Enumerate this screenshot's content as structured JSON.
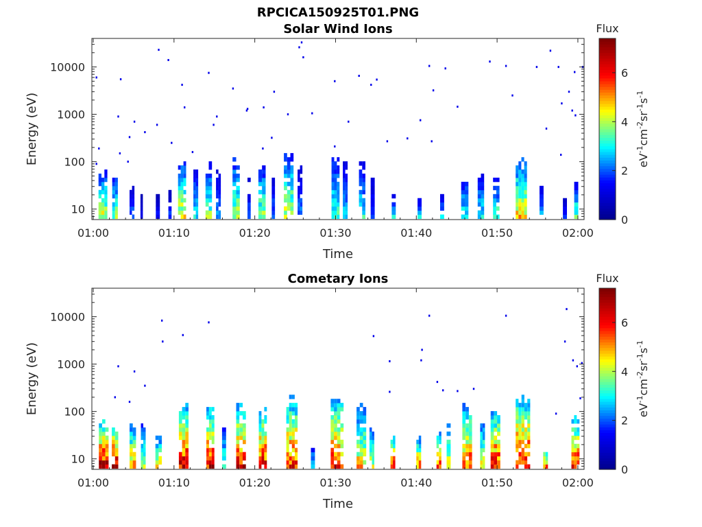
{
  "figure": {
    "filename": "RPCICA150925T01.PNG"
  },
  "colors": {
    "jet": [
      "#00008f",
      "#0000ff",
      "#00ffff",
      "#ffff00",
      "#ff0000",
      "#800000"
    ],
    "axis": "#262626"
  },
  "chart_data": [
    {
      "type": "heatmap",
      "title": "Solar Wind Ions",
      "xlabel": "Time",
      "ylabel": "Energy (eV)",
      "x_ticks": [
        "01:00",
        "01:10",
        "01:20",
        "01:30",
        "01:40",
        "01:50",
        "02:00"
      ],
      "xlim": [
        "01:00",
        "02:00"
      ],
      "y_ticks": [
        "10",
        "100",
        "1000",
        "10000"
      ],
      "y_scale": "log",
      "ylim": [
        6,
        40000
      ],
      "colorbar": {
        "label": "Flux",
        "unit": "eV-1cm-2sr-1s-1",
        "ticks": [
          "0",
          "2",
          "4",
          "6"
        ],
        "range": [
          0,
          7.4
        ]
      },
      "note_time_in_minutes_after_01:00": true,
      "bursts": [
        {
          "t": 1.2,
          "w": 1.1,
          "emax": 45,
          "flux": 4.2
        },
        {
          "t": 2.7,
          "w": 0.7,
          "emax": 45,
          "flux": 3.6
        },
        {
          "t": 4.8,
          "w": 0.6,
          "emax": 22,
          "flux": 2.2
        },
        {
          "t": 6.0,
          "w": 0.3,
          "emax": 16,
          "flux": 1.2
        },
        {
          "t": 8.0,
          "w": 0.5,
          "emax": 16,
          "flux": 1.5
        },
        {
          "t": 9.5,
          "w": 0.4,
          "emax": 16,
          "flux": 1.8
        },
        {
          "t": 11.0,
          "w": 1.0,
          "emax": 80,
          "flux": 4.3
        },
        {
          "t": 12.7,
          "w": 0.6,
          "emax": 60,
          "flux": 2.8
        },
        {
          "t": 14.3,
          "w": 0.8,
          "emax": 70,
          "flux": 3.6
        },
        {
          "t": 15.5,
          "w": 0.6,
          "emax": 50,
          "flux": 2.4
        },
        {
          "t": 17.7,
          "w": 0.9,
          "emax": 85,
          "flux": 4.0
        },
        {
          "t": 19.3,
          "w": 0.4,
          "emax": 30,
          "flux": 2.0
        },
        {
          "t": 20.9,
          "w": 0.9,
          "emax": 65,
          "flux": 3.8
        },
        {
          "t": 22.3,
          "w": 0.4,
          "emax": 35,
          "flux": 2.2
        },
        {
          "t": 24.2,
          "w": 1.2,
          "emax": 110,
          "flux": 4.1
        },
        {
          "t": 25.6,
          "w": 0.6,
          "emax": 60,
          "flux": 2.2
        },
        {
          "t": 30.0,
          "w": 1.0,
          "emax": 120,
          "flux": 3.3
        },
        {
          "t": 31.2,
          "w": 0.6,
          "emax": 80,
          "flux": 2.6
        },
        {
          "t": 33.3,
          "w": 0.8,
          "emax": 70,
          "flux": 3.0
        },
        {
          "t": 34.6,
          "w": 0.5,
          "emax": 45,
          "flux": 2.0
        },
        {
          "t": 37.2,
          "w": 0.5,
          "emax": 16,
          "flux": 2.7
        },
        {
          "t": 40.4,
          "w": 0.5,
          "emax": 16,
          "flux": 2.6
        },
        {
          "t": 43.2,
          "w": 0.5,
          "emax": 16,
          "flux": 2.7
        },
        {
          "t": 46.0,
          "w": 0.9,
          "emax": 35,
          "flux": 3.2
        },
        {
          "t": 48.0,
          "w": 0.8,
          "emax": 40,
          "flux": 3.0
        },
        {
          "t": 49.9,
          "w": 0.8,
          "emax": 30,
          "flux": 3.4
        },
        {
          "t": 53.0,
          "w": 1.4,
          "emax": 80,
          "flux": 4.6
        },
        {
          "t": 55.5,
          "w": 0.5,
          "emax": 30,
          "flux": 2.4
        },
        {
          "t": 58.4,
          "w": 0.5,
          "emax": 16,
          "flux": 1.8
        },
        {
          "t": 59.8,
          "w": 0.5,
          "emax": 30,
          "flux": 3.4
        }
      ],
      "points": [
        {
          "t": 0.3,
          "e": 6000
        },
        {
          "t": 3.3,
          "e": 5500
        },
        {
          "t": 8.0,
          "e": 23000
        },
        {
          "t": 9.2,
          "e": 14000
        },
        {
          "t": 10.9,
          "e": 4200
        },
        {
          "t": 14.2,
          "e": 7500
        },
        {
          "t": 17.2,
          "e": 3500
        },
        {
          "t": 21.0,
          "e": 1400
        },
        {
          "t": 22.3,
          "e": 3000
        },
        {
          "t": 25.7,
          "e": 33000
        },
        {
          "t": 25.9,
          "e": 16000
        },
        {
          "t": 25.4,
          "e": 26000
        },
        {
          "t": 27.0,
          "e": 1050
        },
        {
          "t": 29.8,
          "e": 5000
        },
        {
          "t": 32.8,
          "e": 6500
        },
        {
          "t": 34.3,
          "e": 4200
        },
        {
          "t": 35.0,
          "e": 5400
        },
        {
          "t": 41.5,
          "e": 10500
        },
        {
          "t": 42.0,
          "e": 3200
        },
        {
          "t": 43.5,
          "e": 9300
        },
        {
          "t": 51.0,
          "e": 10500
        },
        {
          "t": 49.0,
          "e": 13000
        },
        {
          "t": 54.8,
          "e": 10000
        },
        {
          "t": 57.5,
          "e": 10000
        },
        {
          "t": 56.5,
          "e": 22000
        },
        {
          "t": 58.8,
          "e": 3000
        },
        {
          "t": 59.5,
          "e": 7800
        },
        {
          "t": 60.5,
          "e": 10000
        },
        {
          "t": 3.0,
          "e": 900
        },
        {
          "t": 5.0,
          "e": 700
        },
        {
          "t": 6.3,
          "e": 420
        },
        {
          "t": 7.8,
          "e": 600
        },
        {
          "t": 11.2,
          "e": 1400
        },
        {
          "t": 15.2,
          "e": 900
        },
        {
          "t": 19.0,
          "e": 1300
        },
        {
          "t": 24.0,
          "e": 1000
        },
        {
          "t": 31.5,
          "e": 700
        },
        {
          "t": 40.4,
          "e": 750
        },
        {
          "t": 45.0,
          "e": 1450
        },
        {
          "t": 51.8,
          "e": 2500
        },
        {
          "t": 56.0,
          "e": 500
        },
        {
          "t": 57.9,
          "e": 1700
        },
        {
          "t": 59.2,
          "e": 1200
        },
        {
          "t": 59.6,
          "e": 950
        },
        {
          "t": 0.6,
          "e": 190
        },
        {
          "t": 3.2,
          "e": 150
        },
        {
          "t": 4.4,
          "e": 330
        },
        {
          "t": 9.6,
          "e": 250
        },
        {
          "t": 12.2,
          "e": 160
        },
        {
          "t": 20.9,
          "e": 190
        },
        {
          "t": 22.0,
          "e": 320
        },
        {
          "t": 29.8,
          "e": 210
        },
        {
          "t": 36.3,
          "e": 270
        },
        {
          "t": 38.8,
          "e": 310
        },
        {
          "t": 41.8,
          "e": 270
        },
        {
          "t": 57.8,
          "e": 140
        },
        {
          "t": 0.3,
          "e": 90
        },
        {
          "t": 4.2,
          "e": 100
        },
        {
          "t": 14.8,
          "e": 600
        },
        {
          "t": 18.9,
          "e": 1200
        }
      ]
    },
    {
      "type": "heatmap",
      "title": "Cometary Ions",
      "xlabel": "Time",
      "ylabel": "Energy (eV)",
      "x_ticks": [
        "01:00",
        "01:10",
        "01:20",
        "01:30",
        "01:40",
        "01:50",
        "02:00"
      ],
      "xlim": [
        "01:00",
        "02:00"
      ],
      "y_ticks": [
        "10",
        "100",
        "1000",
        "10000"
      ],
      "y_scale": "log",
      "ylim": [
        6,
        40000
      ],
      "colorbar": {
        "label": "Flux",
        "unit": "eV-1cm-2sr-1s-1",
        "ticks": [
          "0",
          "2",
          "4",
          "6"
        ],
        "range": [
          0,
          7.4
        ]
      },
      "bursts": [
        {
          "t": 1.3,
          "w": 1.2,
          "emax": 45,
          "flux": 6.6
        },
        {
          "t": 2.7,
          "w": 0.8,
          "emax": 45,
          "flux": 6.3
        },
        {
          "t": 4.9,
          "w": 0.8,
          "emax": 40,
          "flux": 5.2
        },
        {
          "t": 6.2,
          "w": 0.6,
          "emax": 45,
          "flux": 4.0
        },
        {
          "t": 8.1,
          "w": 0.8,
          "emax": 22,
          "flux": 4.7
        },
        {
          "t": 11.2,
          "w": 1.2,
          "emax": 100,
          "flux": 6.4
        },
        {
          "t": 14.5,
          "w": 1.0,
          "emax": 90,
          "flux": 6.2
        },
        {
          "t": 16.2,
          "w": 0.5,
          "emax": 40,
          "flux": 3.5
        },
        {
          "t": 18.3,
          "w": 1.2,
          "emax": 100,
          "flux": 6.1
        },
        {
          "t": 21.0,
          "w": 1.0,
          "emax": 90,
          "flux": 6.0
        },
        {
          "t": 24.6,
          "w": 1.4,
          "emax": 150,
          "flux": 5.8
        },
        {
          "t": 27.2,
          "w": 0.5,
          "emax": 16,
          "flux": 3.0
        },
        {
          "t": 30.2,
          "w": 1.6,
          "emax": 180,
          "flux": 5.6
        },
        {
          "t": 33.2,
          "w": 1.2,
          "emax": 100,
          "flux": 4.6
        },
        {
          "t": 34.5,
          "w": 0.6,
          "emax": 45,
          "flux": 4.0
        },
        {
          "t": 37.1,
          "w": 0.6,
          "emax": 25,
          "flux": 5.8
        },
        {
          "t": 40.3,
          "w": 0.6,
          "emax": 22,
          "flux": 5.3
        },
        {
          "t": 42.8,
          "w": 0.6,
          "emax": 28,
          "flux": 5.8
        },
        {
          "t": 44.0,
          "w": 0.5,
          "emax": 40,
          "flux": 4.8
        },
        {
          "t": 46.3,
          "w": 1.2,
          "emax": 110,
          "flux": 5.5
        },
        {
          "t": 48.2,
          "w": 0.6,
          "emax": 60,
          "flux": 4.2
        },
        {
          "t": 49.8,
          "w": 1.2,
          "emax": 80,
          "flux": 6.0
        },
        {
          "t": 53.2,
          "w": 1.8,
          "emax": 150,
          "flux": 6.3
        },
        {
          "t": 56.0,
          "w": 0.6,
          "emax": 16,
          "flux": 5.0
        },
        {
          "t": 59.7,
          "w": 1.0,
          "emax": 60,
          "flux": 6.0
        }
      ],
      "points": [
        {
          "t": 3.0,
          "e": 900
        },
        {
          "t": 5.0,
          "e": 700
        },
        {
          "t": 6.3,
          "e": 350
        },
        {
          "t": 8.4,
          "e": 8300
        },
        {
          "t": 8.5,
          "e": 3000
        },
        {
          "t": 11.0,
          "e": 4100
        },
        {
          "t": 14.2,
          "e": 7600
        },
        {
          "t": 34.6,
          "e": 3900
        },
        {
          "t": 36.6,
          "e": 1150
        },
        {
          "t": 40.5,
          "e": 1200
        },
        {
          "t": 40.6,
          "e": 2000
        },
        {
          "t": 41.5,
          "e": 10500
        },
        {
          "t": 51.0,
          "e": 10500
        },
        {
          "t": 58.5,
          "e": 14500
        },
        {
          "t": 58.3,
          "e": 3000
        },
        {
          "t": 59.3,
          "e": 1200
        },
        {
          "t": 59.8,
          "e": 900
        },
        {
          "t": 60.4,
          "e": 1050
        },
        {
          "t": 2.6,
          "e": 200
        },
        {
          "t": 4.4,
          "e": 160
        },
        {
          "t": 36.6,
          "e": 260
        },
        {
          "t": 42.5,
          "e": 420
        },
        {
          "t": 43.2,
          "e": 280
        },
        {
          "t": 45.0,
          "e": 270
        },
        {
          "t": 47.0,
          "e": 300
        },
        {
          "t": 57.2,
          "e": 90
        },
        {
          "t": 60.2,
          "e": 190
        }
      ]
    }
  ]
}
